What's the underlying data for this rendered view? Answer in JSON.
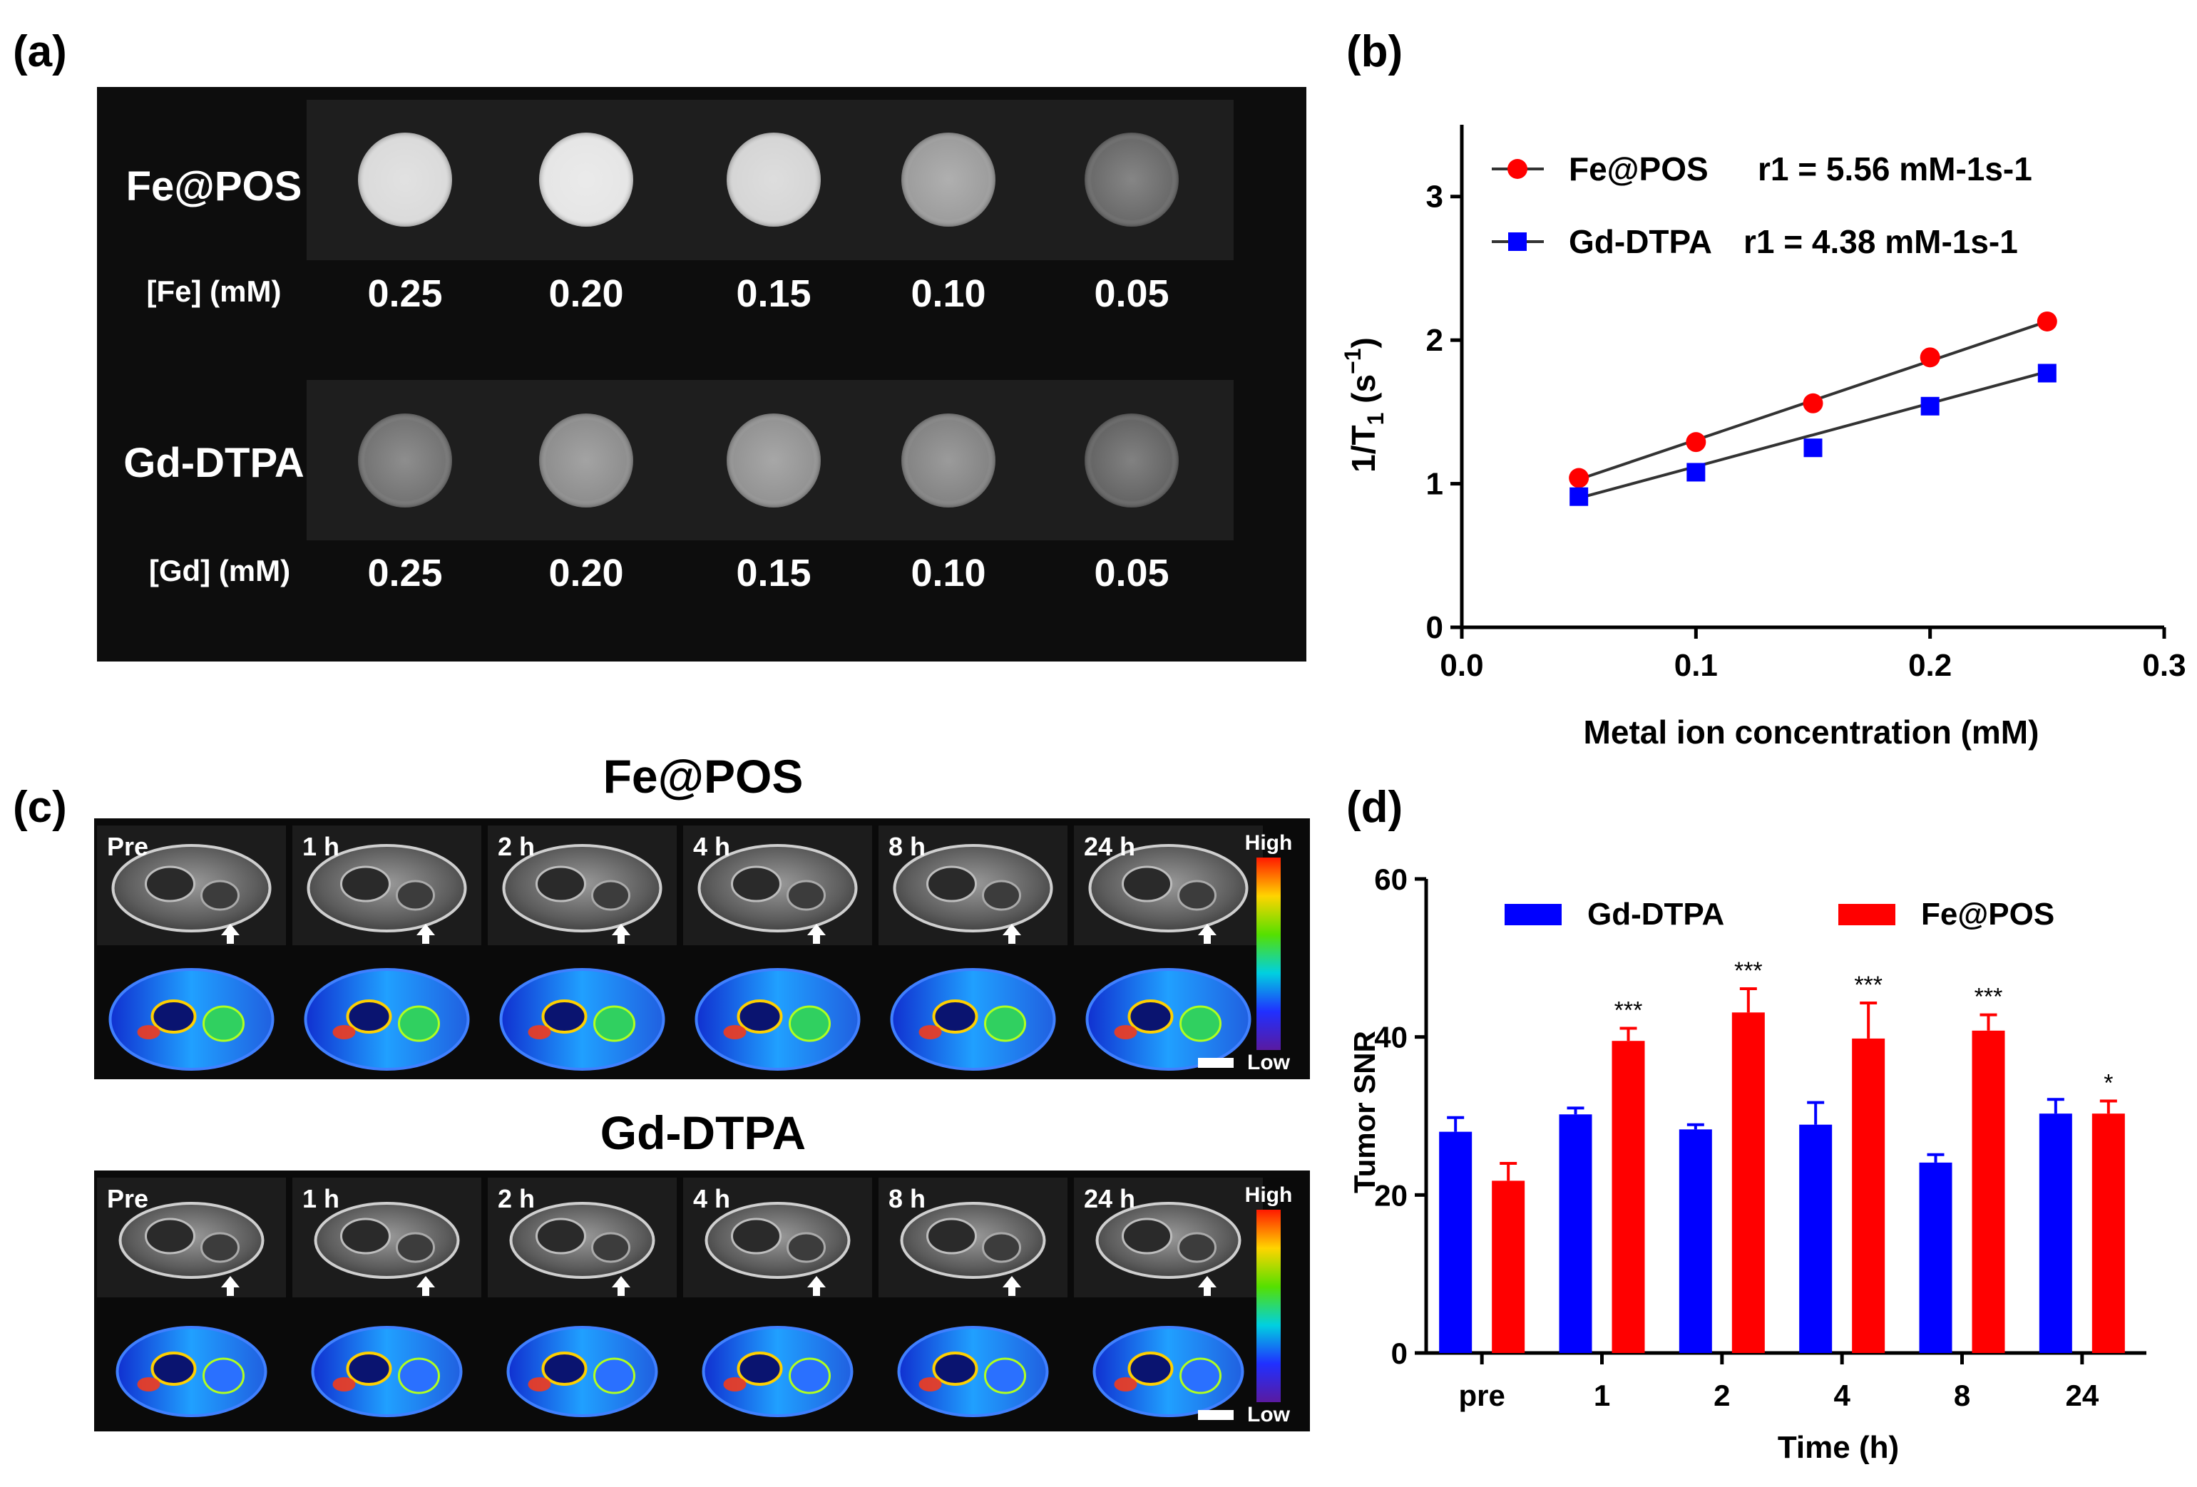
{
  "panel_labels": {
    "a": "(a)",
    "b": "(b)",
    "c": "(c)",
    "d": "(d)"
  },
  "panel_a": {
    "rows": [
      {
        "name": "Fe@POS",
        "conc_label": "[Fe] (mM)",
        "concentrations": [
          "0.25",
          "0.20",
          "0.15",
          "0.10",
          "0.05"
        ],
        "intensity": [
          0.86,
          0.9,
          0.84,
          0.62,
          0.42
        ]
      },
      {
        "name": "Gd-DTPA",
        "conc_label": "[Gd] (mM)",
        "concentrations": [
          "0.25",
          "0.20",
          "0.15",
          "0.10",
          "0.05"
        ],
        "intensity": [
          0.46,
          0.56,
          0.58,
          0.52,
          0.4
        ]
      }
    ]
  },
  "panel_c": {
    "fe_title": "Fe@POS",
    "gd_title": "Gd-DTPA",
    "timepoints": [
      "Pre",
      "1 h",
      "2 h",
      "4 h",
      "8 h",
      "24 h"
    ],
    "colorbar": {
      "high": "High",
      "low": "Low"
    }
  },
  "chart_data": [
    {
      "panel": "b",
      "type": "scatter",
      "xlabel": "Metal ion concentration (mM)",
      "ylabel": "1/T1 (s-1)",
      "xlim": [
        0,
        0.3
      ],
      "ylim": [
        0,
        3.5
      ],
      "xticks": [
        "0.0",
        "0.1",
        "0.2",
        "0.3"
      ],
      "yticks": [
        "0",
        "1",
        "2",
        "3"
      ],
      "series": [
        {
          "name": "Fe@POS",
          "legend_value": "r1 = 5.56 mM-1s-1",
          "color": "#ff0000",
          "marker": "circle",
          "x": [
            0.05,
            0.1,
            0.15,
            0.2,
            0.25
          ],
          "y": [
            1.04,
            1.29,
            1.56,
            1.88,
            2.13
          ],
          "fit": {
            "x": [
              0.05,
              0.25
            ],
            "y": [
              1.03,
              2.13
            ]
          }
        },
        {
          "name": "Gd-DTPA",
          "legend_value": "r1 = 4.38 mM-1s-1",
          "color": "#0000ff",
          "marker": "square",
          "x": [
            0.05,
            0.1,
            0.15,
            0.2,
            0.25
          ],
          "y": [
            0.91,
            1.08,
            1.25,
            1.54,
            1.77
          ],
          "fit": {
            "x": [
              0.05,
              0.25
            ],
            "y": [
              0.9,
              1.78
            ]
          }
        }
      ]
    },
    {
      "panel": "d",
      "type": "bar",
      "xlabel": "Time (h)",
      "ylabel": "Tumor SNR",
      "ylim": [
        0,
        60
      ],
      "yticks": [
        "0",
        "20",
        "40",
        "60"
      ],
      "categories": [
        "pre",
        "1",
        "2",
        "4",
        "8",
        "24"
      ],
      "series": [
        {
          "name": "Gd-DTPA",
          "color": "#0000ff",
          "values": [
            28.0,
            30.2,
            28.3,
            28.9,
            24.1,
            30.3
          ],
          "errors": [
            1.8,
            0.8,
            0.6,
            2.8,
            1.0,
            1.8
          ]
        },
        {
          "name": "Fe@POS",
          "color": "#ff0000",
          "values": [
            21.8,
            39.5,
            43.1,
            39.8,
            40.8,
            30.3
          ],
          "errors": [
            2.2,
            1.6,
            3.0,
            4.5,
            2.0,
            1.6
          ]
        }
      ],
      "significance": [
        "",
        "***",
        "***",
        "***",
        "***",
        "*"
      ]
    }
  ]
}
